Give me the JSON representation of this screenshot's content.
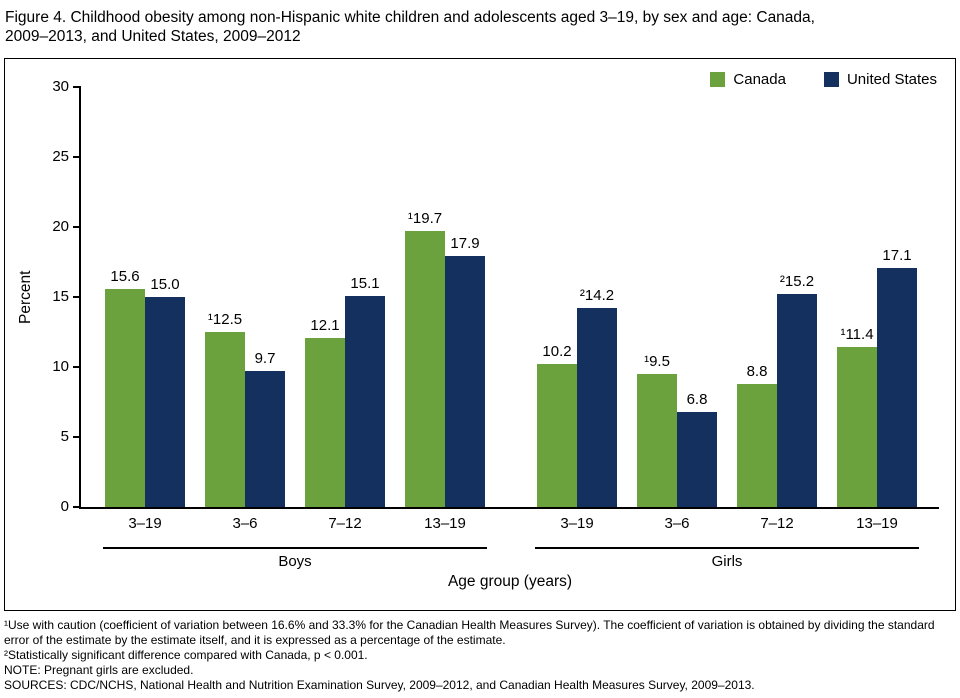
{
  "figure_title": "Figure 4. Childhood obesity among non-Hispanic white children and adolescents aged 3–19, by sex and age: Canada, 2009–2013, and United States, 2009–2012",
  "chart_data": {
    "type": "bar",
    "title": "Figure 4. Childhood obesity among non-Hispanic white children and adolescents aged 3–19, by sex and age: Canada, 2009–2013, and United States, 2009–2012",
    "ylabel": "Percent",
    "xlabel": "Age group (years)",
    "ylim": [
      0,
      30
    ],
    "yticks": [
      0,
      5,
      10,
      15,
      20,
      25,
      30
    ],
    "grid": false,
    "legend_position": "top-right",
    "series": [
      {
        "name": "Canada",
        "color": "#6CA23D"
      },
      {
        "name": "United States",
        "color": "#13305F"
      }
    ],
    "sections": [
      {
        "label": "Boys",
        "categories": [
          "3–19",
          "3–6",
          "7–12",
          "13–19"
        ],
        "values": [
          [
            15.6,
            12.5,
            12.1,
            19.7
          ],
          [
            15.0,
            9.7,
            15.1,
            17.9
          ]
        ],
        "value_labels": [
          [
            "15.6",
            "¹12.5",
            "12.1",
            "¹19.7"
          ],
          [
            "15.0",
            "9.7",
            "15.1",
            "17.9"
          ]
        ]
      },
      {
        "label": "Girls",
        "categories": [
          "3–19",
          "3–6",
          "7–12",
          "13–19"
        ],
        "values": [
          [
            10.2,
            9.5,
            8.8,
            11.4
          ],
          [
            14.2,
            6.8,
            15.2,
            17.1
          ]
        ],
        "value_labels": [
          [
            "10.2",
            "¹9.5",
            "8.8",
            "¹11.4"
          ],
          [
            "²14.2",
            "6.8",
            "²15.2",
            "17.1"
          ]
        ]
      }
    ]
  },
  "footnotes": [
    "¹Use with caution (coefficient of variation between 16.6% and 33.3% for the Canadian Health Measures Survey). The coefficient of variation is obtained by dividing the standard error of the estimate by the estimate itself, and it is expressed as a percentage of the estimate.",
    "²Statistically significant difference compared with Canada, p < 0.001.",
    "NOTE: Pregnant girls are excluded.",
    "SOURCES: CDC/NCHS, National Health and Nutrition Examination Survey, 2009–2012, and Canadian Health Measures Survey, 2009–2013."
  ]
}
